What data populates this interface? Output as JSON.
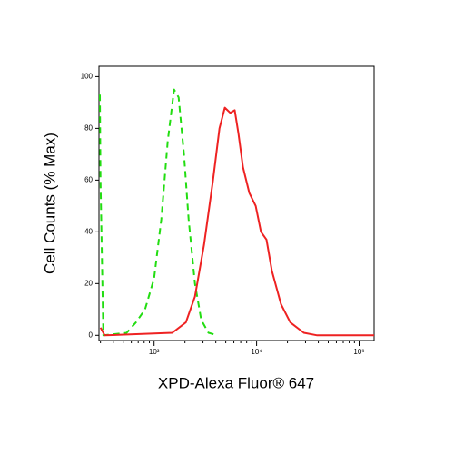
{
  "chart_data": {
    "type": "line",
    "xlabel": "XPD-Alexa Fluor® 647",
    "ylabel": "Cell Counts (% Max)",
    "xscale": "log",
    "xlim": [
      290,
      140000
    ],
    "ylim": [
      -2,
      104
    ],
    "xticks": [
      {
        "value": 1000,
        "label": "10³"
      },
      {
        "value": 10000,
        "label": "10⁴"
      },
      {
        "value": 100000,
        "label": "10⁵"
      }
    ],
    "yticks": [
      0,
      20,
      40,
      60,
      80,
      100
    ],
    "series": [
      {
        "color": "#22dd11",
        "dash": true,
        "x": [
          296,
          300,
          320,
          540,
          665,
          815,
          1000,
          1177,
          1358,
          1566,
          1734,
          1958,
          2169,
          2503,
          2884,
          3394,
          4160
        ],
        "values": [
          93,
          60,
          0,
          1,
          5,
          10,
          22,
          45,
          75,
          95,
          92,
          70,
          45,
          20,
          6,
          1,
          0
        ]
      },
      {
        "color": "#ee2222",
        "dash": false,
        "x": [
          300,
          330,
          1503,
          2040,
          2503,
          3070,
          3760,
          4340,
          4900,
          5530,
          6120,
          6650,
          7370,
          8500,
          9800,
          11030,
          12500,
          14100,
          17300,
          21300,
          28900,
          39000,
          140000
        ],
        "values": [
          3,
          0,
          1,
          5,
          15,
          35,
          60,
          80,
          88,
          86,
          87,
          78,
          65,
          55,
          50,
          40,
          37,
          25,
          12,
          5,
          1,
          0,
          0
        ]
      }
    ]
  }
}
